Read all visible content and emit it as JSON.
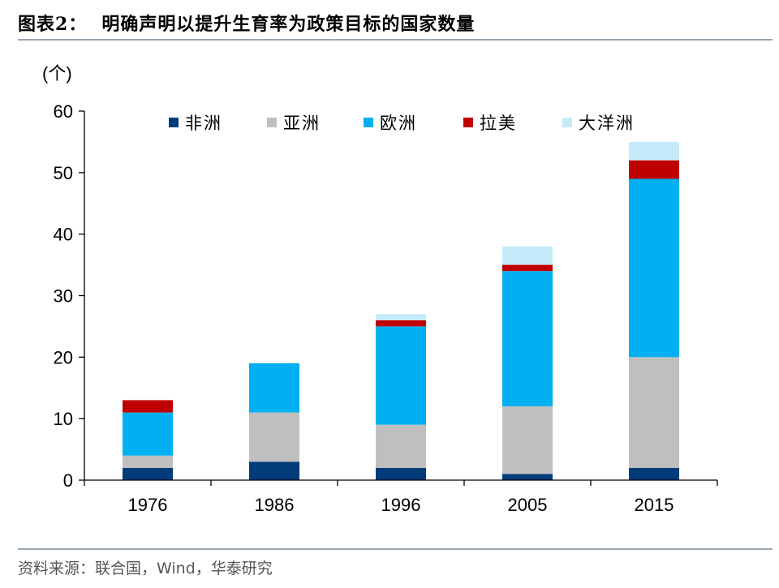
{
  "figure": {
    "label": "图表2：",
    "title": "明确声明以提升生育率为政策目标的国家数量",
    "source": "资料来源：联合国，Wind，华泰研究"
  },
  "chart_data": {
    "type": "bar",
    "stacked": true,
    "categories": [
      "1976",
      "1986",
      "1996",
      "2005",
      "2015"
    ],
    "series": [
      {
        "name": "非洲",
        "color": "#003b7a",
        "values": [
          2,
          3,
          2,
          1,
          2
        ]
      },
      {
        "name": "亚洲",
        "color": "#bfbfbf",
        "values": [
          2,
          8,
          7,
          11,
          18
        ]
      },
      {
        "name": "欧洲",
        "color": "#00b0f0",
        "values": [
          7,
          8,
          16,
          22,
          29
        ]
      },
      {
        "name": "拉美",
        "color": "#c00000",
        "values": [
          2,
          0,
          1,
          1,
          3
        ]
      },
      {
        "name": "大洋洲",
        "color": "#c5eafa",
        "values": [
          0,
          0,
          1,
          3,
          3
        ]
      }
    ],
    "ylabel": "(个)",
    "ylim": [
      0,
      60
    ],
    "yticks": [
      0,
      10,
      20,
      30,
      40,
      50,
      60
    ],
    "grid": false,
    "legend_position": "top"
  }
}
